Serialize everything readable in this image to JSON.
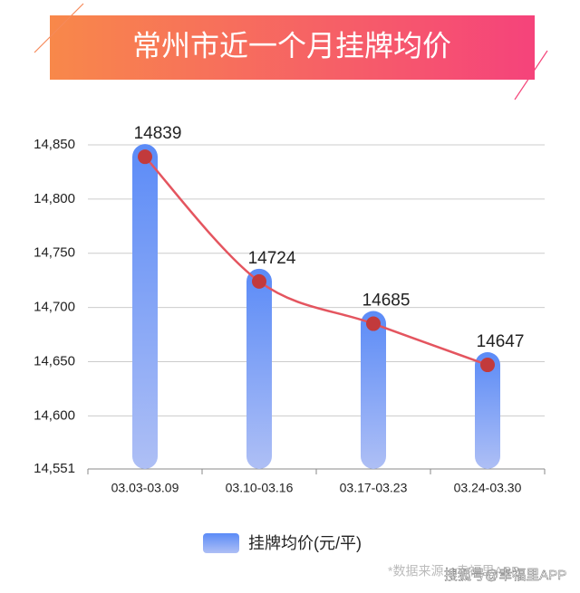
{
  "chart_data": {
    "type": "bar",
    "title": "常州市近一个月挂牌均价",
    "categories": [
      "03.03-03.09",
      "03.10-03.16",
      "03.17-03.23",
      "03.24-03.30"
    ],
    "series": [
      {
        "name": "挂牌均价(元/平)",
        "color": "#5b8bf7",
        "values": [
          14839,
          14724,
          14685,
          14647
        ]
      }
    ],
    "line_color": "#e4555f",
    "point_color": "#c23a3c",
    "ylim": [
      14551,
      14850
    ],
    "yticks": [
      {
        "value": 14551,
        "label": "14,551"
      },
      {
        "value": 14600,
        "label": "14,600"
      },
      {
        "value": 14650,
        "label": "14,650"
      },
      {
        "value": 14700,
        "label": "14,700"
      },
      {
        "value": 14750,
        "label": "14,750"
      },
      {
        "value": 14800,
        "label": "14,800"
      },
      {
        "value": 14850,
        "label": "14,850"
      }
    ],
    "grid": true,
    "source": "*数据来源：幸福里APP",
    "watermark": "搜狐号@幸福里APP"
  }
}
